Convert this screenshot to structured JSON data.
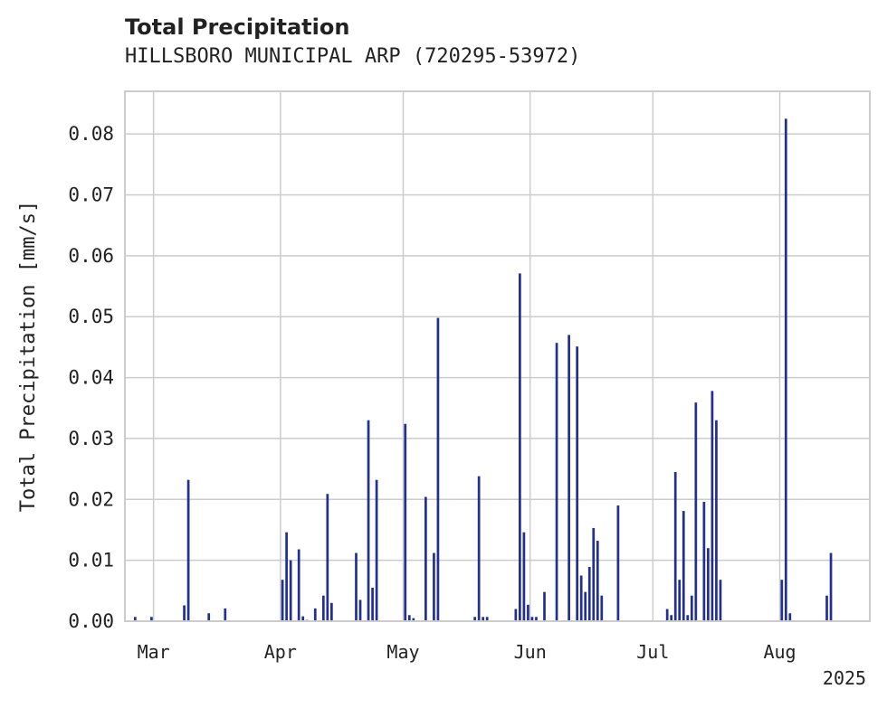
{
  "header": {
    "title": "Total Precipitation",
    "subtitle": "HILLSBORO MUNICIPAL ARP (720295-53972)"
  },
  "chart_data": {
    "type": "bar",
    "ylabel": "Total Precipitation [mm/s]",
    "xlabel": "",
    "year_label": "2025",
    "ylim": [
      0,
      0.087
    ],
    "yticks": [
      0.0,
      0.01,
      0.02,
      0.03,
      0.04,
      0.05,
      0.06,
      0.07,
      0.08
    ],
    "xlim": [
      "2025-02-22",
      "2025-08-23"
    ],
    "xticks": [
      {
        "date": "2025-03-01",
        "label": "Mar"
      },
      {
        "date": "2025-04-01",
        "label": "Apr"
      },
      {
        "date": "2025-05-01",
        "label": "May"
      },
      {
        "date": "2025-06-01",
        "label": "Jun"
      },
      {
        "date": "2025-07-01",
        "label": "Jul"
      },
      {
        "date": "2025-08-01",
        "label": "Aug"
      }
    ],
    "grid": true,
    "bar_color": "#23308f",
    "series": [
      {
        "x": [
          "2025-02-24",
          "2025-02-28",
          "2025-03-08",
          "2025-03-09",
          "2025-03-14",
          "2025-03-18",
          "2025-04-01",
          "2025-04-02",
          "2025-04-03",
          "2025-04-05",
          "2025-04-06",
          "2025-04-07",
          "2025-04-09",
          "2025-04-11",
          "2025-04-12",
          "2025-04-13",
          "2025-04-14",
          "2025-04-15",
          "2025-04-19",
          "2025-04-20",
          "2025-04-22",
          "2025-04-23",
          "2025-04-24",
          "2025-05-01",
          "2025-05-02",
          "2025-05-03",
          "2025-05-06",
          "2025-05-08",
          "2025-05-09",
          "2025-05-10",
          "2025-05-18",
          "2025-05-19",
          "2025-05-20",
          "2025-05-21",
          "2025-05-28",
          "2025-05-29",
          "2025-05-30",
          "2025-05-31",
          "2025-06-01",
          "2025-06-02",
          "2025-06-04",
          "2025-06-07",
          "2025-06-10",
          "2025-06-12",
          "2025-06-13",
          "2025-06-14",
          "2025-06-15",
          "2025-06-16",
          "2025-06-17",
          "2025-06-18",
          "2025-06-22",
          "2025-07-04",
          "2025-07-05",
          "2025-07-06",
          "2025-07-07",
          "2025-07-08",
          "2025-07-09",
          "2025-07-10",
          "2025-07-11",
          "2025-07-13",
          "2025-07-14",
          "2025-07-15",
          "2025-07-16",
          "2025-07-17",
          "2025-08-01",
          "2025-08-02",
          "2025-08-03",
          "2025-08-12",
          "2025-08-13"
        ],
        "values": [
          0.0007,
          0.0007,
          0.0026,
          0.0232,
          0.0013,
          0.0021,
          0.0068,
          0.0146,
          0.01,
          0.0118,
          0.0008,
          0.0002,
          0.0021,
          0.0042,
          0.0209,
          0.003,
          0.0001,
          0.0001,
          0.0112,
          0.0035,
          0.033,
          0.0055,
          0.0232,
          0.0324,
          0.001,
          0.0005,
          0.0204,
          0.0112,
          0.0498,
          0.0001,
          0.0007,
          0.0238,
          0.0007,
          0.0007,
          0.002,
          0.0571,
          0.0146,
          0.0027,
          0.0007,
          0.0007,
          0.0048,
          0.0457,
          0.047,
          0.0451,
          0.0075,
          0.0048,
          0.0089,
          0.0153,
          0.0132,
          0.0042,
          0.019,
          0.002,
          0.001,
          0.0245,
          0.0068,
          0.0181,
          0.001,
          0.0042,
          0.0359,
          0.0196,
          0.012,
          0.0378,
          0.033,
          0.0068,
          0.0068,
          0.0825,
          0.0013,
          0.0042,
          0.0112
        ]
      }
    ]
  }
}
